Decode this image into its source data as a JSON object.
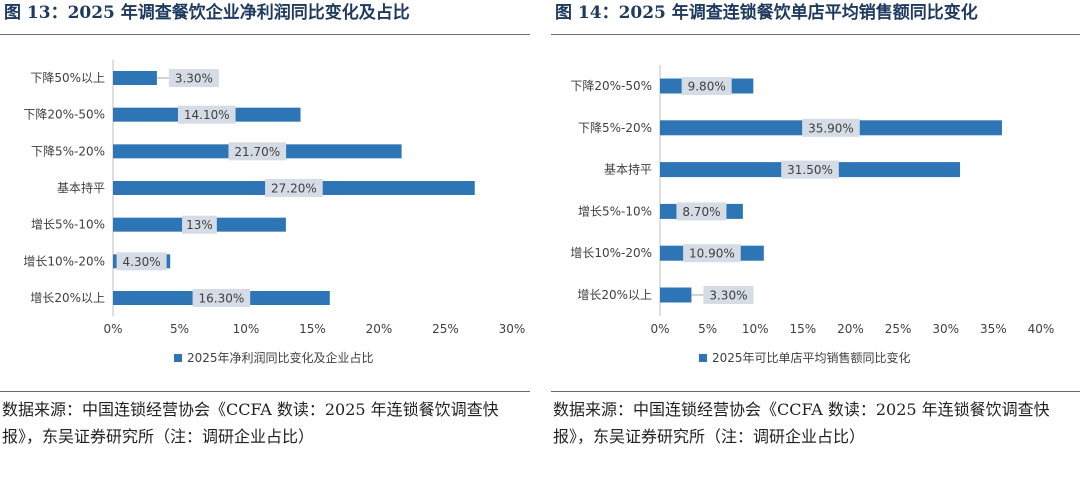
{
  "colors": {
    "bar": "#2e75b6",
    "label_bg": "#d6dce5",
    "axis": "#bfbfbf",
    "text": "#404040",
    "title": "#1f3a5f"
  },
  "figures": [
    {
      "title": "图 13：2025 年调查餐饮企业净利润同比变化及占比",
      "source": "数据来源：中国连锁经营协会《CCFA 数读：2025 年连锁餐饮调查快报》，东吴证券研究所（注：调研企业占比）",
      "chart_data": {
        "type": "bar",
        "orientation": "horizontal",
        "categories": [
          "下降50%以上",
          "下降20%-50%",
          "下降5%-20%",
          "基本持平",
          "增长5%-10%",
          "增长10%-20%",
          "增长20%以上"
        ],
        "values": [
          3.3,
          14.1,
          21.7,
          27.2,
          13,
          4.3,
          16.3
        ],
        "data_labels": [
          "3.30%",
          "14.10%",
          "21.70%",
          "27.20%",
          "13%",
          "4.30%",
          "16.30%"
        ],
        "xlim": [
          0,
          30
        ],
        "xticks": [
          "0%",
          "5%",
          "10%",
          "15%",
          "20%",
          "25%",
          "30%"
        ],
        "legend": "2025年净利润同比变化及企业占比",
        "legend_position": "bottom"
      }
    },
    {
      "title": "图 14：2025 年调查连锁餐饮单店平均销售额同比变化",
      "source": "数据来源：中国连锁经营协会《CCFA 数读：2025 年连锁餐饮调查快报》，东吴证券研究所（注：调研企业占比）",
      "chart_data": {
        "type": "bar",
        "orientation": "horizontal",
        "categories": [
          "下降20%-50%",
          "下降5%-20%",
          "基本持平",
          "增长5%-10%",
          "增长10%-20%",
          "增长20%以上"
        ],
        "values": [
          9.8,
          35.9,
          31.5,
          8.7,
          10.9,
          3.3
        ],
        "data_labels": [
          "9.80%",
          "35.90%",
          "31.50%",
          "8.70%",
          "10.90%",
          "3.30%"
        ],
        "xlim": [
          0,
          40
        ],
        "xticks": [
          "0%",
          "5%",
          "10%",
          "15%",
          "20%",
          "25%",
          "30%",
          "35%",
          "40%"
        ],
        "legend": "2025年可比单店平均销售额同比变化",
        "legend_position": "bottom"
      }
    }
  ]
}
